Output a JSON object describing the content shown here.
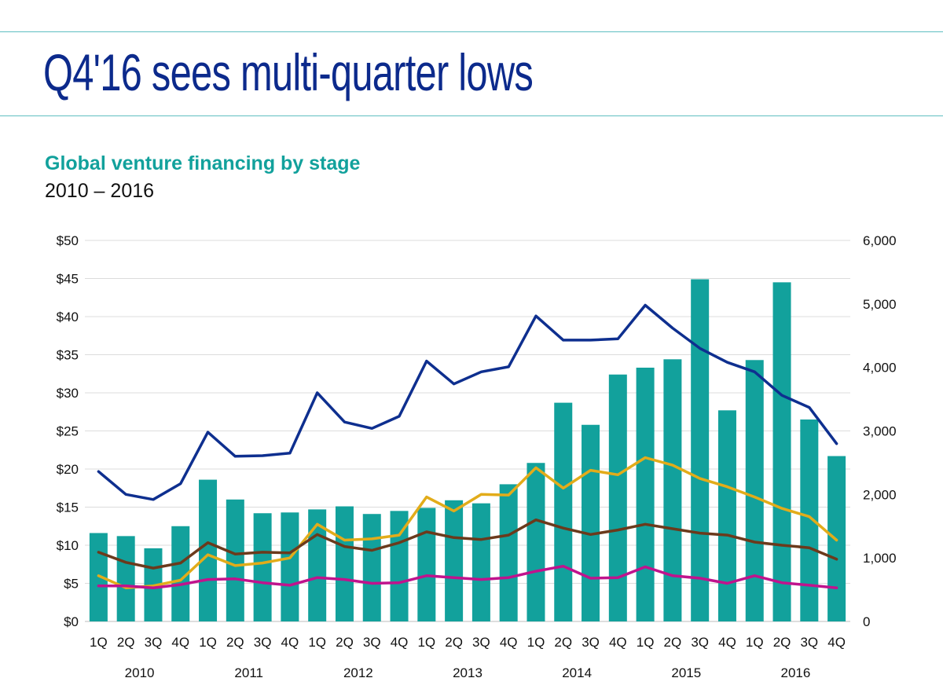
{
  "page": {
    "headline": "Q4'16 sees multi-quarter lows",
    "subtitle": "Global venture financing by stage",
    "period": "2010 – 2016"
  },
  "chart_data": {
    "type": "bar",
    "title": "Global venture financing by stage",
    "subtitle": "2010 – 2016",
    "categories": [
      "1Q",
      "2Q",
      "3Q",
      "4Q",
      "1Q",
      "2Q",
      "3Q",
      "4Q",
      "1Q",
      "2Q",
      "3Q",
      "4Q",
      "1Q",
      "2Q",
      "3Q",
      "4Q",
      "1Q",
      "2Q",
      "3Q",
      "4Q",
      "1Q",
      "2Q",
      "3Q",
      "4Q",
      "1Q",
      "2Q",
      "3Q",
      "4Q"
    ],
    "years": [
      "2010",
      "2011",
      "2012",
      "2013",
      "2014",
      "2015",
      "2016"
    ],
    "left_axis": {
      "ylim": [
        0,
        50
      ],
      "ticks": [
        "$0",
        "$5",
        "$10",
        "$15",
        "$20",
        "$25",
        "$30",
        "$35",
        "$40",
        "$45",
        "$50"
      ]
    },
    "right_axis": {
      "ylim": [
        0,
        6000
      ],
      "ticks": [
        "0",
        "1,000",
        "2,000",
        "3,000",
        "4,000",
        "5,000",
        "6,000"
      ]
    },
    "grid": true,
    "legend": "none",
    "series": [
      {
        "type": "bar",
        "axis": "left",
        "color": "#12a19c",
        "values": [
          11.6,
          11.2,
          9.6,
          12.5,
          18.6,
          16.0,
          14.2,
          14.3,
          14.7,
          15.1,
          14.1,
          14.5,
          14.9,
          15.9,
          15.5,
          18.0,
          20.8,
          28.7,
          25.8,
          32.4,
          33.3,
          34.4,
          44.9,
          27.7,
          34.3,
          44.5,
          26.5,
          21.7
        ]
      },
      {
        "type": "line",
        "axis": "right",
        "color": "#0e2f8f",
        "values": [
          2360,
          2000,
          1920,
          2170,
          2980,
          2600,
          2610,
          2650,
          3600,
          3140,
          3040,
          3230,
          4100,
          3740,
          3930,
          4010,
          4810,
          4430,
          4430,
          4450,
          4980,
          4620,
          4300,
          4080,
          3930,
          3560,
          3370,
          2800
        ]
      },
      {
        "type": "line",
        "axis": "right",
        "color": "#e2ac1a",
        "values": [
          720,
          530,
          560,
          650,
          1050,
          880,
          920,
          1000,
          1530,
          1280,
          1300,
          1360,
          1960,
          1740,
          2000,
          1990,
          2420,
          2100,
          2380,
          2310,
          2580,
          2460,
          2250,
          2120,
          1960,
          1780,
          1650,
          1280
        ]
      },
      {
        "type": "line",
        "axis": "right",
        "color": "#6b3a1c",
        "values": [
          1090,
          930,
          840,
          920,
          1240,
          1060,
          1090,
          1080,
          1370,
          1180,
          1120,
          1240,
          1410,
          1320,
          1290,
          1360,
          1600,
          1470,
          1370,
          1440,
          1530,
          1460,
          1390,
          1360,
          1250,
          1200,
          1160,
          980
        ]
      },
      {
        "type": "line",
        "axis": "right",
        "color": "#c0138d",
        "values": [
          560,
          560,
          530,
          580,
          660,
          670,
          610,
          570,
          690,
          660,
          600,
          610,
          720,
          690,
          660,
          690,
          790,
          870,
          680,
          690,
          860,
          720,
          680,
          600,
          720,
          610,
          570,
          530
        ]
      }
    ]
  }
}
